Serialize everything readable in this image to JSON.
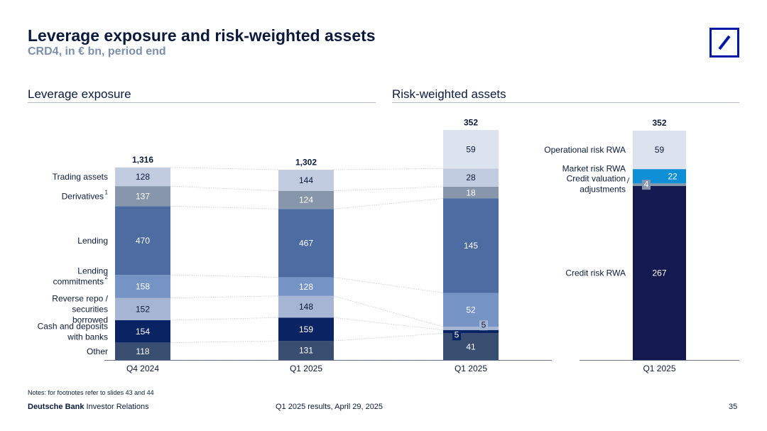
{
  "title": "Leverage exposure and risk-weighted assets",
  "subtitle": "CRD4, in € bn, period end",
  "brand_color": "#0018a8",
  "sections": {
    "left": "Leverage exposure",
    "right": "Risk-weighted assets"
  },
  "chart_data": [
    {
      "type": "bar",
      "stacked": true,
      "title": "Leverage exposure",
      "categories": [
        "Q4 2024",
        "Q1 2025"
      ],
      "totals": [
        "1,316",
        "1,302"
      ],
      "series": [
        {
          "name": "Other",
          "values": [
            118,
            131
          ],
          "color": "#3a4e72"
        },
        {
          "name": "Cash and deposits with banks",
          "values": [
            154,
            159
          ],
          "color": "#0a2463"
        },
        {
          "name": "Reverse repo / securities borrowed",
          "values": [
            152,
            148
          ],
          "color": "#a5b5d3"
        },
        {
          "name": "Lending commitments",
          "sup": "2",
          "values": [
            158,
            128
          ],
          "color": "#7593c4"
        },
        {
          "name": "Lending",
          "values": [
            470,
            467
          ],
          "color": "#4d6ca2"
        },
        {
          "name": "Derivatives",
          "sup": "1",
          "values": [
            137,
            124
          ],
          "color": "#8796ab"
        },
        {
          "name": "Trading assets",
          "values": [
            128,
            144
          ],
          "color": "#c2cce0"
        }
      ]
    },
    {
      "type": "bar",
      "stacked": true,
      "title": "Risk-weighted assets",
      "categories": [
        "Q1 2025"
      ],
      "totals": [
        "352"
      ],
      "series": [
        {
          "name": "",
          "values": [
            41
          ],
          "color": "#3a4e72"
        },
        {
          "name": "",
          "values": [
            5
          ],
          "color": "#0a2463",
          "label_side": "left"
        },
        {
          "name": "",
          "values": [
            5
          ],
          "color": "#a5b5d3",
          "label_side": "right"
        },
        {
          "name": "",
          "values": [
            52
          ],
          "color": "#7593c4"
        },
        {
          "name": "",
          "values": [
            145
          ],
          "color": "#4d6ca2"
        },
        {
          "name": "",
          "values": [
            18
          ],
          "color": "#8796ab"
        },
        {
          "name": "",
          "values": [
            28
          ],
          "color": "#c2cce0"
        },
        {
          "name": "",
          "values": [
            59
          ],
          "color": "#dde3ee"
        }
      ]
    },
    {
      "type": "bar",
      "stacked": true,
      "title": "Risk-weighted assets",
      "categories": [
        "Q1 2025"
      ],
      "totals": [
        "352"
      ],
      "series": [
        {
          "name": "Credit risk RWA",
          "values": [
            267
          ],
          "color": "#141a4f"
        },
        {
          "name": "Credit valuation adjustments",
          "values": [
            4
          ],
          "color": "#8796ab"
        },
        {
          "name": "Market risk RWA",
          "values": [
            22
          ],
          "color": "#0e8fd6"
        },
        {
          "name": "Operational risk RWA",
          "values": [
            59
          ],
          "color": "#dde3ee"
        }
      ]
    }
  ],
  "notes": "Notes: for footnotes refer to slides 43 and 44",
  "footer": {
    "brand_bold": "Deutsche Bank",
    "brand_rest": " Investor Relations",
    "center": "Q1 2025 results, April 29, 2025",
    "page": "35"
  }
}
